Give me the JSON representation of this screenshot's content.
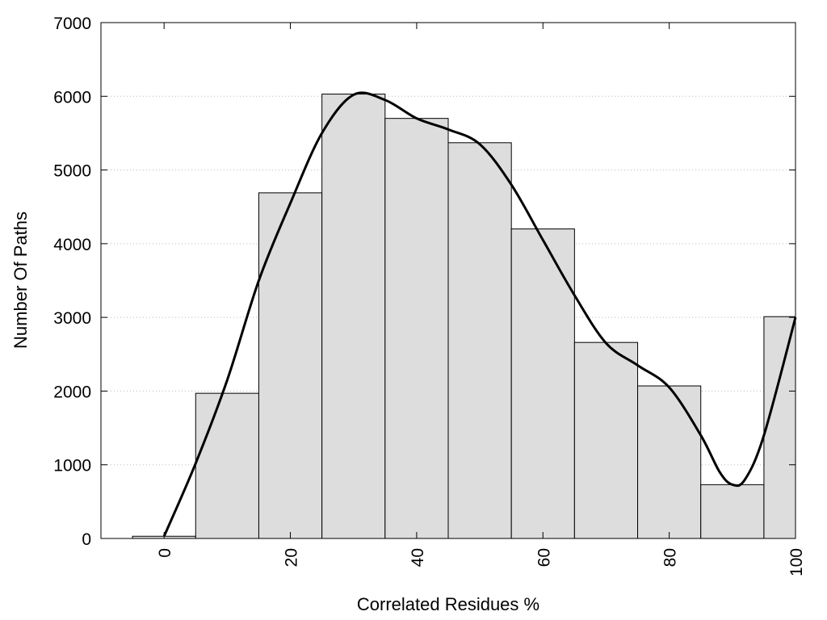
{
  "chart_data": {
    "type": "bar",
    "title": "",
    "xlabel": "Correlated Residues %",
    "ylabel": "Number Of Paths",
    "xlim": [
      -10,
      100
    ],
    "ylim": [
      0,
      7000
    ],
    "bin_width": 10,
    "x_ticks": [
      0,
      20,
      40,
      60,
      80,
      100
    ],
    "y_ticks": [
      0,
      1000,
      2000,
      3000,
      4000,
      5000,
      6000,
      7000
    ],
    "grid": "horizontal dotted",
    "bar_color": "#dddddd",
    "bar_edge_color": "#000000",
    "line_color": "#000000",
    "bars": [
      {
        "x": 0,
        "value": 30
      },
      {
        "x": 10,
        "value": 1970
      },
      {
        "x": 20,
        "value": 4690
      },
      {
        "x": 30,
        "value": 6030
      },
      {
        "x": 40,
        "value": 5700
      },
      {
        "x": 50,
        "value": 5370
      },
      {
        "x": 60,
        "value": 4200
      },
      {
        "x": 70,
        "value": 2660
      },
      {
        "x": 80,
        "value": 2070
      },
      {
        "x": 90,
        "value": 730
      },
      {
        "x": 100,
        "value": 3010
      }
    ],
    "smooth_curve": {
      "x": [
        0,
        5,
        10,
        15,
        20,
        25,
        30,
        35,
        40,
        45,
        50,
        55,
        60,
        65,
        70,
        75,
        80,
        85,
        88,
        90,
        92,
        95,
        100
      ],
      "y": [
        30,
        1020,
        2150,
        3500,
        4550,
        5500,
        6020,
        5950,
        5700,
        5550,
        5350,
        4800,
        4050,
        3300,
        2650,
        2350,
        2050,
        1400,
        900,
        730,
        800,
        1400,
        3000
      ]
    }
  }
}
